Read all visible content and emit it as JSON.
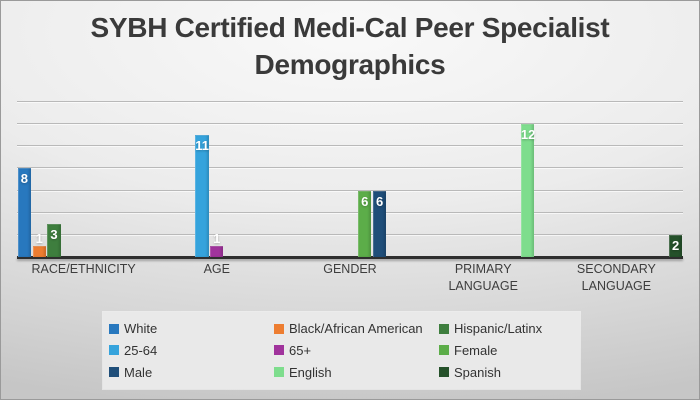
{
  "chart_data": {
    "type": "bar",
    "title": "SYBH Certified Medi-Cal Peer Specialist Demographics",
    "categories": [
      "RACE/ETHNICITY",
      "AGE",
      "GENDER",
      "PRIMARY LANGUAGE",
      "SECONDARY LANGUAGE"
    ],
    "category_display": [
      "RACE/ETHNICITY",
      "AGE",
      "GENDER",
      "PRIMARY\nLANGUAGE",
      "SECONDARY\nLANGUAGE"
    ],
    "series": [
      {
        "name": "White",
        "category": "RACE/ETHNICITY",
        "value": 8,
        "color": "#2878BE"
      },
      {
        "name": "Black/African American",
        "category": "RACE/ETHNICITY",
        "value": 1,
        "color": "#ED7D31"
      },
      {
        "name": "Hispanic/Latinx",
        "category": "RACE/ETHNICITY",
        "value": 3,
        "color": "#3E7E3E"
      },
      {
        "name": "25-64",
        "category": "AGE",
        "value": 11,
        "color": "#35A3DC"
      },
      {
        "name": "65+",
        "category": "AGE",
        "value": 1,
        "color": "#A0339C"
      },
      {
        "name": "Female",
        "category": "GENDER",
        "value": 6,
        "color": "#5CAD49"
      },
      {
        "name": "Male",
        "category": "GENDER",
        "value": 6,
        "color": "#1F4E79"
      },
      {
        "name": "English",
        "category": "PRIMARY LANGUAGE",
        "value": 12,
        "color": "#7EDD8D"
      },
      {
        "name": "Spanish",
        "category": "SECONDARY LANGUAGE",
        "value": 2,
        "color": "#25512A"
      }
    ],
    "ylim": [
      0,
      14
    ],
    "gridline_step": 2,
    "grid": true,
    "xlabel": "",
    "ylabel": "",
    "value_labels": "inside-end",
    "legend_position": "bottom",
    "legend_rows": [
      [
        "White",
        "Black/African American",
        "Hispanic/Latinx"
      ],
      [
        "25-64",
        "65+",
        "Female"
      ],
      [
        "Male",
        "English",
        "Spanish"
      ]
    ]
  }
}
